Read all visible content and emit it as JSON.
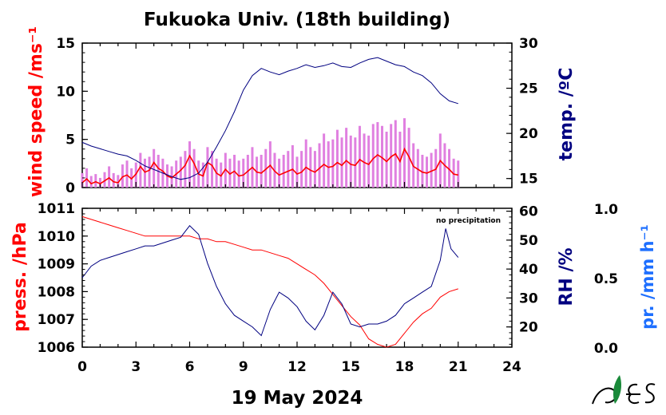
{
  "page": {
    "title": "Fukuoka Univ. (18th building)",
    "xlabel": "19 May 2024",
    "x_ticks": [
      "0",
      "3",
      "6",
      "9",
      "12",
      "15",
      "18",
      "21",
      "24"
    ]
  },
  "colors": {
    "wind": "#ff0000",
    "wind_gust": "#e080e0",
    "temp": "#000080",
    "press": "#ff0000",
    "rh": "#000080",
    "precip_label": "#1e6fff",
    "axis": "#000000"
  },
  "chart_data": [
    {
      "type": "line",
      "x_unit": "hour",
      "xlim": [
        0,
        24
      ],
      "left_axis": {
        "label": "wind speed /ms⁻¹",
        "ylim": [
          0,
          15
        ],
        "ticks": [
          "0",
          "5",
          "10",
          "15"
        ],
        "color": "#ff0000"
      },
      "right_axis": {
        "label": "temp. /ºC",
        "ylim": [
          14,
          30
        ],
        "ticks": [
          "15",
          "20",
          "25",
          "30"
        ],
        "color": "#000080"
      },
      "series": [
        {
          "axis": "left",
          "x": [
            0,
            0.25,
            0.5,
            0.75,
            1,
            1.25,
            1.5,
            1.75,
            2,
            2.25,
            2.5,
            2.75,
            3,
            3.25,
            3.5,
            3.75,
            4,
            4.25,
            4.5,
            4.75,
            5,
            5.25,
            5.5,
            5.75,
            6,
            6.25,
            6.5,
            6.75,
            7,
            7.25,
            7.5,
            7.75,
            8,
            8.25,
            8.5,
            8.75,
            9,
            9.25,
            9.5,
            9.75,
            10,
            10.25,
            10.5,
            10.75,
            11,
            11.25,
            11.5,
            11.75,
            12,
            12.25,
            12.5,
            12.75,
            13,
            13.25,
            13.5,
            13.75,
            14,
            14.25,
            14.5,
            14.75,
            15,
            15.25,
            15.5,
            15.75,
            16,
            16.25,
            16.5,
            16.75,
            17,
            17.25,
            17.5,
            17.75,
            18,
            18.25,
            18.5,
            18.75,
            19,
            19.25,
            19.5,
            19.75,
            20,
            20.25,
            20.5,
            20.75,
            21
          ],
          "values": [
            0.5,
            0.9,
            0.4,
            0.6,
            0.4,
            0.7,
            1.0,
            0.6,
            0.5,
            1.1,
            1.3,
            0.9,
            1.4,
            2.2,
            1.6,
            1.8,
            2.6,
            2.0,
            1.7,
            1.2,
            1.0,
            1.4,
            1.8,
            2.3,
            3.3,
            2.5,
            1.4,
            1.2,
            2.6,
            2.3,
            1.5,
            1.2,
            1.9,
            1.4,
            1.7,
            1.2,
            1.3,
            1.7,
            2.1,
            1.6,
            1.5,
            1.9,
            2.3,
            1.7,
            1.3,
            1.5,
            1.7,
            1.9,
            1.4,
            1.6,
            2.1,
            1.8,
            1.6,
            2.0,
            2.4,
            2.1,
            2.2,
            2.6,
            2.3,
            2.8,
            2.4,
            2.3,
            2.9,
            2.6,
            2.4,
            3.0,
            3.4,
            3.1,
            2.7,
            3.2,
            3.5,
            2.7,
            4.0,
            3.2,
            2.2,
            1.9,
            1.6,
            1.5,
            1.7,
            1.9,
            2.8,
            2.3,
            1.9,
            1.4,
            1.3
          ]
        },
        {
          "axis": "left",
          "x": [
            0,
            0.25,
            0.5,
            0.75,
            1,
            1.25,
            1.5,
            1.75,
            2,
            2.25,
            2.5,
            2.75,
            3,
            3.25,
            3.5,
            3.75,
            4,
            4.25,
            4.5,
            4.75,
            5,
            5.25,
            5.5,
            5.75,
            6,
            6.25,
            6.5,
            6.75,
            7,
            7.25,
            7.5,
            7.75,
            8,
            8.25,
            8.5,
            8.75,
            9,
            9.25,
            9.5,
            9.75,
            10,
            10.25,
            10.5,
            10.75,
            11,
            11.25,
            11.5,
            11.75,
            12,
            12.25,
            12.5,
            12.75,
            13,
            13.25,
            13.5,
            13.75,
            14,
            14.25,
            14.5,
            14.75,
            15,
            15.25,
            15.5,
            15.75,
            16,
            16.25,
            16.5,
            16.75,
            17,
            17.25,
            17.5,
            17.75,
            18,
            18.25,
            18.5,
            18.75,
            19,
            19.25,
            19.5,
            19.75,
            20,
            20.25,
            20.5,
            20.75,
            21
          ],
          "values": [
            1.5,
            2.0,
            1.2,
            1.4,
            1.0,
            1.6,
            2.2,
            1.5,
            1.3,
            2.4,
            2.8,
            2.0,
            2.6,
            3.6,
            3.0,
            3.2,
            4.0,
            3.4,
            3.0,
            2.4,
            2.2,
            2.8,
            3.2,
            3.8,
            4.8,
            4.0,
            2.8,
            2.6,
            4.2,
            3.8,
            3.0,
            2.6,
            3.6,
            3.0,
            3.4,
            2.8,
            3.0,
            3.4,
            4.2,
            3.2,
            3.4,
            4.0,
            4.8,
            3.6,
            3.0,
            3.4,
            3.8,
            4.4,
            3.2,
            3.8,
            5.0,
            4.2,
            3.8,
            4.6,
            5.6,
            4.8,
            5.0,
            6.0,
            5.2,
            6.2,
            5.4,
            5.2,
            6.4,
            5.6,
            5.4,
            6.6,
            6.8,
            6.4,
            5.8,
            6.6,
            7.0,
            5.8,
            7.2,
            6.2,
            4.6,
            4.0,
            3.4,
            3.2,
            3.6,
            4.0,
            5.6,
            4.6,
            4.0,
            3.0,
            2.8
          ]
        },
        {
          "axis": "right",
          "x": [
            0,
            0.5,
            1,
            1.5,
            2,
            2.5,
            3,
            3.5,
            4,
            4.5,
            5,
            5.5,
            6,
            6.5,
            7,
            7.5,
            8,
            8.5,
            9,
            9.5,
            10,
            10.5,
            11,
            11.5,
            12,
            12.5,
            13,
            13.5,
            14,
            14.5,
            15,
            15.5,
            16,
            16.5,
            17,
            17.5,
            18,
            18.5,
            19,
            19.5,
            20,
            20.5,
            21
          ],
          "values": [
            19.0,
            18.6,
            18.3,
            18.0,
            17.7,
            17.5,
            17.0,
            16.4,
            16.0,
            15.6,
            15.2,
            14.9,
            15.1,
            15.6,
            16.8,
            18.5,
            20.3,
            22.4,
            24.8,
            26.4,
            27.2,
            26.8,
            26.5,
            26.9,
            27.2,
            27.6,
            27.3,
            27.5,
            27.8,
            27.4,
            27.3,
            27.8,
            28.2,
            28.4,
            28.0,
            27.6,
            27.4,
            26.8,
            26.4,
            25.6,
            24.4,
            23.6,
            23.3
          ]
        }
      ]
    },
    {
      "type": "line",
      "x_unit": "hour",
      "xlim": [
        0,
        24
      ],
      "left_axis": {
        "label": "press. /hPa",
        "ylim": [
          1006,
          1011
        ],
        "ticks": [
          "1006",
          "1007",
          "1008",
          "1009",
          "1010",
          "1011"
        ],
        "color": "#ff0000"
      },
      "right_axis": {
        "label": "RH /%",
        "ylim": [
          13,
          61
        ],
        "ticks": [
          "20",
          "30",
          "40",
          "50",
          "60"
        ],
        "color": "#000080"
      },
      "precip_axis": {
        "label": "pr. /mm h⁻¹",
        "ylim": [
          0,
          1
        ],
        "ticks": [
          "0.0",
          "0.5",
          "1.0"
        ],
        "color": "#1e6fff"
      },
      "annotation": "no precipitation",
      "series": [
        {
          "axis": "left",
          "x": [
            0,
            0.5,
            1,
            1.5,
            2,
            2.5,
            3,
            3.5,
            4,
            4.5,
            5,
            5.5,
            6,
            6.5,
            7,
            7.5,
            8,
            8.5,
            9,
            9.5,
            10,
            10.5,
            11,
            11.5,
            12,
            12.5,
            13,
            13.5,
            14,
            14.5,
            15,
            15.5,
            16,
            16.5,
            17,
            17.5,
            18,
            18.5,
            19,
            19.5,
            20,
            20.5,
            21
          ],
          "values": [
            1010.7,
            1010.6,
            1010.5,
            1010.4,
            1010.3,
            1010.2,
            1010.1,
            1010.0,
            1010.0,
            1010.0,
            1010.0,
            1010.0,
            1010.0,
            1009.9,
            1009.9,
            1009.8,
            1009.8,
            1009.7,
            1009.6,
            1009.5,
            1009.5,
            1009.4,
            1009.3,
            1009.2,
            1009.0,
            1008.8,
            1008.6,
            1008.3,
            1007.9,
            1007.5,
            1007.1,
            1006.8,
            1006.3,
            1006.1,
            1006.0,
            1006.1,
            1006.5,
            1006.9,
            1007.2,
            1007.4,
            1007.8,
            1008.0,
            1008.1
          ]
        },
        {
          "axis": "right",
          "x": [
            0,
            0.5,
            1,
            1.5,
            2,
            2.5,
            3,
            3.5,
            4,
            4.5,
            5,
            5.5,
            6,
            6.5,
            7,
            7.5,
            8,
            8.5,
            9,
            9.5,
            10,
            10.5,
            11,
            11.5,
            12,
            12.5,
            13,
            13.5,
            14,
            14.5,
            15,
            15.5,
            16,
            16.5,
            17,
            17.5,
            18,
            18.5,
            19,
            19.5,
            20,
            20.3,
            20.6,
            21
          ],
          "values": [
            37,
            41,
            43,
            44,
            45,
            46,
            47,
            48,
            48,
            49,
            50,
            51,
            55,
            52,
            42,
            34,
            28,
            24,
            22,
            20,
            17,
            26,
            32,
            30,
            27,
            22,
            19,
            24,
            32,
            28,
            21,
            20,
            21,
            21,
            22,
            24,
            28,
            30,
            32,
            34,
            43,
            54,
            47,
            44
          ]
        }
      ]
    }
  ]
}
